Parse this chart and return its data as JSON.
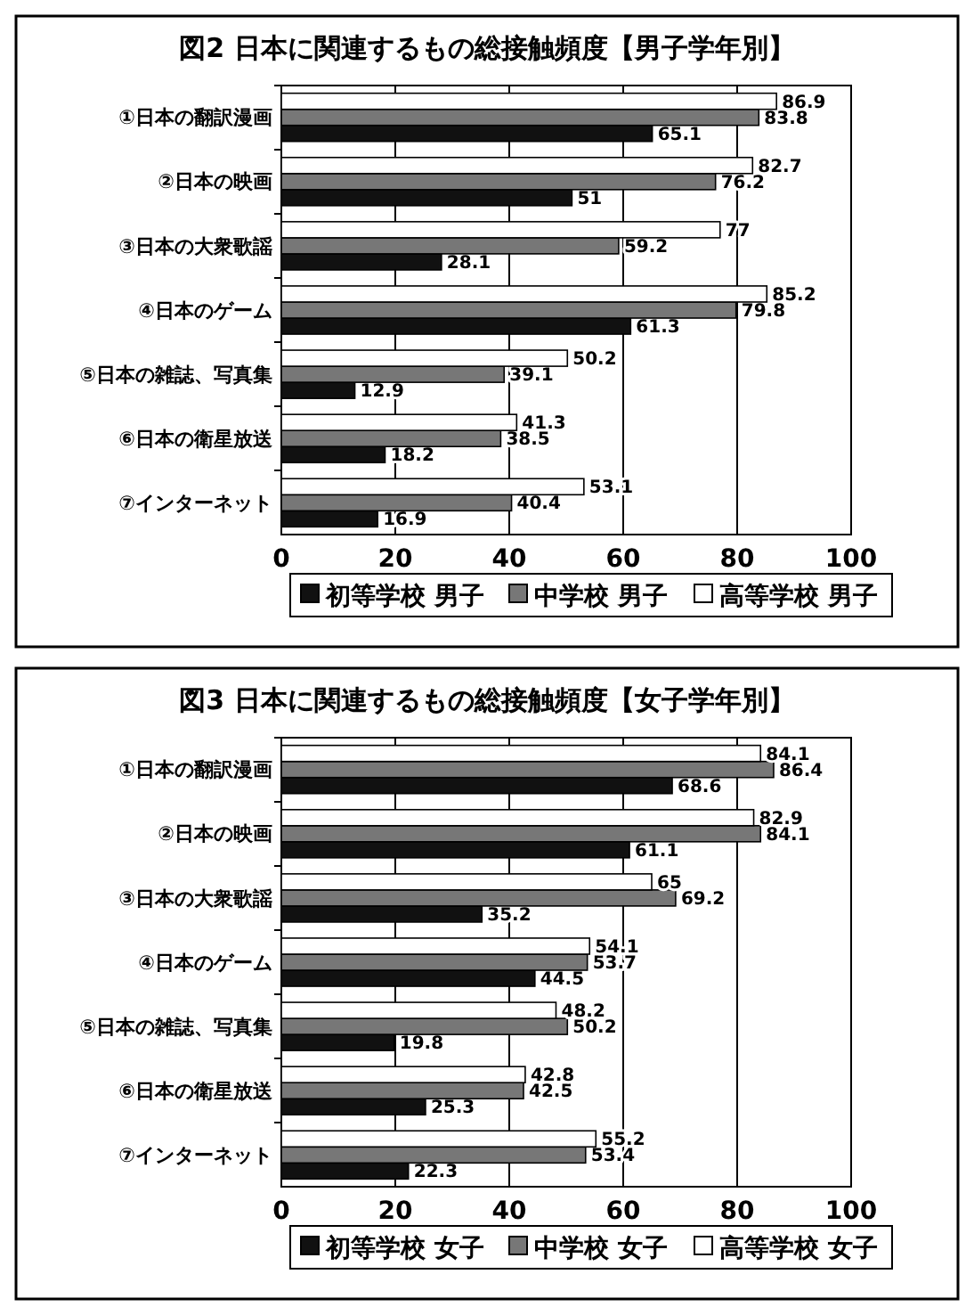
{
  "chart_data": [
    {
      "type": "bar",
      "orientation": "horizontal",
      "title": "図2 日本に関連するもの総接触頻度【男子学年別】",
      "categories": [
        "①日本の翻訳漫画",
        "②日本の映画",
        "③日本の大衆歌謡",
        "④日本のゲーム",
        "⑤日本の雑誌、写真集",
        "⑥日本の衛星放送",
        "⑦インターネット"
      ],
      "series": [
        {
          "name": "初等学校 男子",
          "color": "#111111",
          "values": [
            65.1,
            51,
            28.1,
            61.3,
            12.9,
            18.2,
            16.9
          ]
        },
        {
          "name": "中学校 男子",
          "color": "#777777",
          "values": [
            83.8,
            76.2,
            59.2,
            79.8,
            39.1,
            38.5,
            40.4
          ]
        },
        {
          "name": "高等学校 男子",
          "color": "#ffffff",
          "values": [
            86.9,
            82.7,
            77,
            85.2,
            50.2,
            41.3,
            53.1
          ]
        }
      ],
      "xlim": [
        0,
        100
      ],
      "xticks": [
        0,
        20,
        40,
        60,
        80,
        100
      ],
      "grid": "x",
      "legend": "bottom",
      "data_labels": true
    },
    {
      "type": "bar",
      "orientation": "horizontal",
      "title": "図3 日本に関連するもの総接触頻度【女子学年別】",
      "categories": [
        "①日本の翻訳漫画",
        "②日本の映画",
        "③日本の大衆歌謡",
        "④日本のゲーム",
        "⑤日本の雑誌、写真集",
        "⑥日本の衛星放送",
        "⑦インターネット"
      ],
      "series": [
        {
          "name": "初等学校 女子",
          "color": "#111111",
          "values": [
            68.6,
            61.1,
            35.2,
            44.5,
            19.8,
            25.3,
            22.3
          ]
        },
        {
          "name": "中学校 女子",
          "color": "#777777",
          "values": [
            86.4,
            84.1,
            69.2,
            53.7,
            50.2,
            42.5,
            53.4
          ]
        },
        {
          "name": "高等学校 女子",
          "color": "#ffffff",
          "values": [
            84.1,
            82.9,
            65,
            54.1,
            48.2,
            42.8,
            55.2
          ]
        }
      ],
      "xlim": [
        0,
        100
      ],
      "xticks": [
        0,
        20,
        40,
        60,
        80,
        100
      ],
      "grid": "x",
      "legend": "bottom",
      "data_labels": true
    }
  ]
}
